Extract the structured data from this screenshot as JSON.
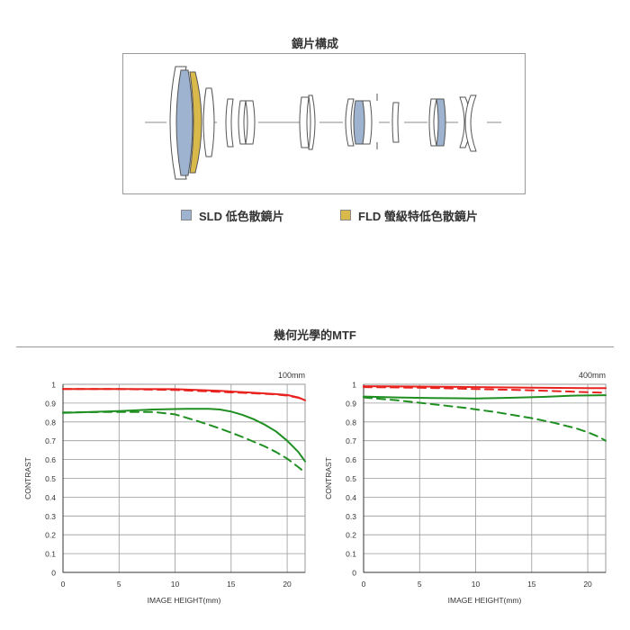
{
  "lens_section": {
    "title": "鏡片構成",
    "legend": [
      {
        "label": "SLD 低色散鏡片",
        "color": "#9eb3cf"
      },
      {
        "label": "FLD 螢級特低色散鏡片",
        "color": "#d9b94a"
      }
    ]
  },
  "mtf_section": {
    "title": "幾何光學的MTF"
  },
  "colors": {
    "red": "#e8231f",
    "green": "#1f8f22",
    "grid": "#999999",
    "axis": "#333333"
  },
  "chart_data": [
    {
      "type": "line",
      "title": "100mm",
      "xlabel": "IMAGE HEIGHT(mm)",
      "ylabel": "CONTRAST",
      "xlim": [
        0,
        21.6
      ],
      "ylim": [
        0,
        1
      ],
      "xticks": [
        0,
        5,
        10,
        15,
        20
      ],
      "yticks": [
        0,
        0.1,
        0.2,
        0.3,
        0.4,
        0.5,
        0.6,
        0.7,
        0.8,
        0.9,
        1
      ],
      "grid": true,
      "series": [
        {
          "color": "red",
          "dash": false,
          "x": [
            0,
            5,
            10,
            14,
            17,
            19,
            20,
            21,
            21.6
          ],
          "y": [
            0.975,
            0.975,
            0.974,
            0.965,
            0.955,
            0.948,
            0.943,
            0.93,
            0.915
          ]
        },
        {
          "color": "red",
          "dash": true,
          "x": [
            0,
            5,
            10,
            14,
            17,
            19,
            20,
            21,
            21.6
          ],
          "y": [
            0.975,
            0.975,
            0.97,
            0.96,
            0.952,
            0.946,
            0.94,
            0.928,
            0.918
          ]
        },
        {
          "color": "green",
          "dash": false,
          "x": [
            0,
            5,
            8,
            11,
            13,
            14,
            15,
            16,
            17,
            18,
            19,
            20,
            21,
            21.6
          ],
          "y": [
            0.848,
            0.858,
            0.866,
            0.87,
            0.87,
            0.866,
            0.855,
            0.838,
            0.815,
            0.785,
            0.75,
            0.7,
            0.64,
            0.59
          ]
        },
        {
          "color": "green",
          "dash": true,
          "x": [
            0,
            4,
            8,
            10,
            12,
            14,
            16,
            18,
            19,
            20,
            21,
            21.6
          ],
          "y": [
            0.85,
            0.853,
            0.853,
            0.84,
            0.805,
            0.765,
            0.72,
            0.67,
            0.64,
            0.605,
            0.56,
            0.53
          ]
        }
      ]
    },
    {
      "type": "line",
      "title": "400mm",
      "xlabel": "IMAGE HEIGHT(mm)",
      "ylabel": "CONTRAST",
      "xlim": [
        0,
        21.6
      ],
      "ylim": [
        0,
        1
      ],
      "xticks": [
        0,
        5,
        10,
        15,
        20
      ],
      "yticks": [
        0,
        0.1,
        0.2,
        0.3,
        0.4,
        0.5,
        0.6,
        0.7,
        0.8,
        0.9,
        1
      ],
      "grid": true,
      "series": [
        {
          "color": "red",
          "dash": false,
          "x": [
            0,
            5,
            10,
            15,
            20,
            21.6
          ],
          "y": [
            0.99,
            0.988,
            0.985,
            0.982,
            0.98,
            0.98
          ]
        },
        {
          "color": "red",
          "dash": true,
          "x": [
            0,
            5,
            10,
            15,
            18,
            20,
            21.6
          ],
          "y": [
            0.985,
            0.982,
            0.975,
            0.968,
            0.962,
            0.958,
            0.955
          ]
        },
        {
          "color": "green",
          "dash": false,
          "x": [
            0,
            3,
            6,
            10,
            13,
            16,
            19,
            21.6
          ],
          "y": [
            0.935,
            0.93,
            0.927,
            0.925,
            0.928,
            0.933,
            0.94,
            0.942
          ]
        },
        {
          "color": "green",
          "dash": true,
          "x": [
            0,
            3,
            6,
            9,
            12,
            15,
            17,
            19,
            20,
            21,
            21.6
          ],
          "y": [
            0.93,
            0.915,
            0.895,
            0.875,
            0.85,
            0.82,
            0.795,
            0.765,
            0.745,
            0.72,
            0.7
          ]
        }
      ]
    }
  ]
}
